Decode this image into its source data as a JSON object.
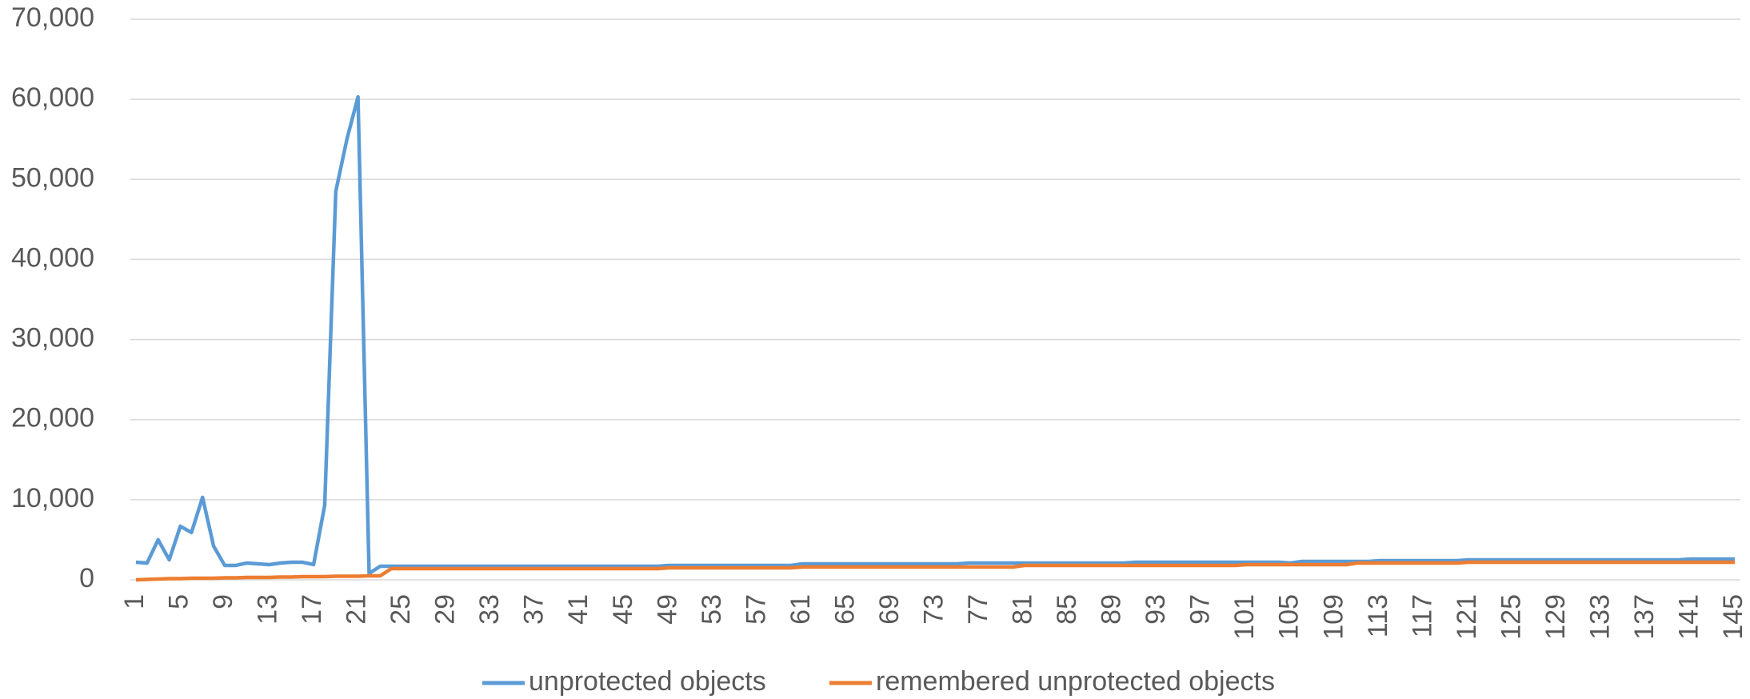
{
  "chart_data": {
    "type": "line",
    "categories": [
      "1",
      null,
      null,
      null,
      "5",
      null,
      null,
      null,
      "9",
      null,
      null,
      null,
      "13",
      null,
      null,
      null,
      "17",
      null,
      null,
      null,
      "21",
      null,
      null,
      null,
      "25",
      null,
      null,
      null,
      "29",
      null,
      null,
      null,
      "33",
      null,
      null,
      null,
      "37",
      null,
      null,
      null,
      "41",
      null,
      null,
      null,
      "45",
      null,
      null,
      null,
      "49",
      null,
      null,
      null,
      "53",
      null,
      null,
      null,
      "57",
      null,
      null,
      null,
      "61",
      null,
      null,
      null,
      "65",
      null,
      null,
      null,
      "69",
      null,
      null,
      null,
      "73",
      null,
      null,
      null,
      "77",
      null,
      null,
      null,
      "81",
      null,
      null,
      null,
      "85",
      null,
      null,
      null,
      "89",
      null,
      null,
      null,
      "93",
      null,
      null,
      null,
      "97",
      null,
      null,
      null,
      "101",
      null,
      null,
      null,
      "105",
      null,
      null,
      null,
      "109",
      null,
      null,
      null,
      "113",
      null,
      null,
      null,
      "117",
      null,
      null,
      null,
      "121",
      null,
      null,
      null,
      "125",
      null,
      null,
      null,
      "129",
      null,
      null,
      null,
      "133",
      null,
      null,
      null,
      "137",
      null,
      null,
      null,
      "141",
      null,
      null,
      null,
      "145"
    ],
    "series": [
      {
        "name": "unprotected objects",
        "color": "#5b9bd5",
        "values": [
          2200,
          2100,
          5000,
          2500,
          6700,
          5900,
          10300,
          4200,
          1800,
          1800,
          2100,
          2000,
          1900,
          2100,
          2200,
          2200,
          1900,
          9300,
          48500,
          55000,
          60300,
          800,
          1700,
          1700,
          1700,
          1700,
          1700,
          1700,
          1700,
          1700,
          1700,
          1700,
          1700,
          1700,
          1700,
          1700,
          1700,
          1700,
          1700,
          1700,
          1700,
          1700,
          1700,
          1700,
          1700,
          1700,
          1700,
          1700,
          1800,
          1800,
          1800,
          1800,
          1800,
          1800,
          1800,
          1800,
          1800,
          1800,
          1800,
          1800,
          2000,
          2000,
          2000,
          2000,
          2000,
          2000,
          2000,
          2000,
          2000,
          2000,
          2000,
          2000,
          2000,
          2000,
          2000,
          2100,
          2100,
          2100,
          2100,
          2100,
          2100,
          2100,
          2100,
          2100,
          2100,
          2100,
          2100,
          2100,
          2100,
          2100,
          2200,
          2200,
          2200,
          2200,
          2200,
          2200,
          2200,
          2200,
          2200,
          2200,
          2200,
          2200,
          2200,
          2200,
          2100,
          2300,
          2300,
          2300,
          2300,
          2300,
          2300,
          2300,
          2400,
          2400,
          2400,
          2400,
          2400,
          2400,
          2400,
          2400,
          2500,
          2500,
          2500,
          2500,
          2500,
          2500,
          2500,
          2500,
          2500,
          2500,
          2500,
          2500,
          2500,
          2500,
          2500,
          2500,
          2500,
          2500,
          2500,
          2500,
          2600,
          2600,
          2600,
          2600,
          2600
        ]
      },
      {
        "name": "remembered unprotected objects",
        "color": "#ed7d31",
        "values": [
          0,
          50,
          100,
          150,
          150,
          200,
          200,
          200,
          250,
          250,
          300,
          300,
          300,
          350,
          350,
          400,
          400,
          400,
          450,
          450,
          450,
          500,
          500,
          1400,
          1400,
          1400,
          1400,
          1400,
          1400,
          1400,
          1400,
          1400,
          1400,
          1400,
          1400,
          1400,
          1400,
          1400,
          1400,
          1400,
          1400,
          1400,
          1400,
          1400,
          1400,
          1400,
          1400,
          1400,
          1500,
          1500,
          1500,
          1500,
          1500,
          1500,
          1500,
          1500,
          1500,
          1500,
          1500,
          1500,
          1600,
          1600,
          1600,
          1600,
          1600,
          1600,
          1600,
          1600,
          1600,
          1600,
          1600,
          1600,
          1600,
          1600,
          1600,
          1600,
          1600,
          1600,
          1600,
          1600,
          1800,
          1800,
          1800,
          1800,
          1800,
          1800,
          1800,
          1800,
          1800,
          1800,
          1800,
          1800,
          1800,
          1800,
          1800,
          1800,
          1800,
          1800,
          1800,
          1800,
          1900,
          1900,
          1900,
          1900,
          1900,
          1900,
          1900,
          1900,
          1900,
          1900,
          2100,
          2100,
          2100,
          2100,
          2100,
          2100,
          2100,
          2100,
          2100,
          2100,
          2200,
          2200,
          2200,
          2200,
          2200,
          2200,
          2200,
          2200,
          2200,
          2200,
          2200,
          2200,
          2200,
          2200,
          2200,
          2200,
          2200,
          2200,
          2200,
          2200,
          2200,
          2200,
          2200,
          2200,
          2200
        ]
      }
    ],
    "ylim": [
      0,
      70000
    ],
    "yticks": [
      0,
      {
        "value": 10000,
        "label": "10,000"
      },
      {
        "value": 20000,
        "label": "20,000"
      },
      {
        "value": 30000,
        "label": "30,000"
      },
      {
        "value": 40000,
        "label": "40,000"
      },
      {
        "value": 50000,
        "label": "50,000"
      },
      {
        "value": 60000,
        "label": "60,000"
      },
      {
        "value": 70000,
        "label": "70,000"
      }
    ],
    "grid": true,
    "legend": "bottom"
  }
}
